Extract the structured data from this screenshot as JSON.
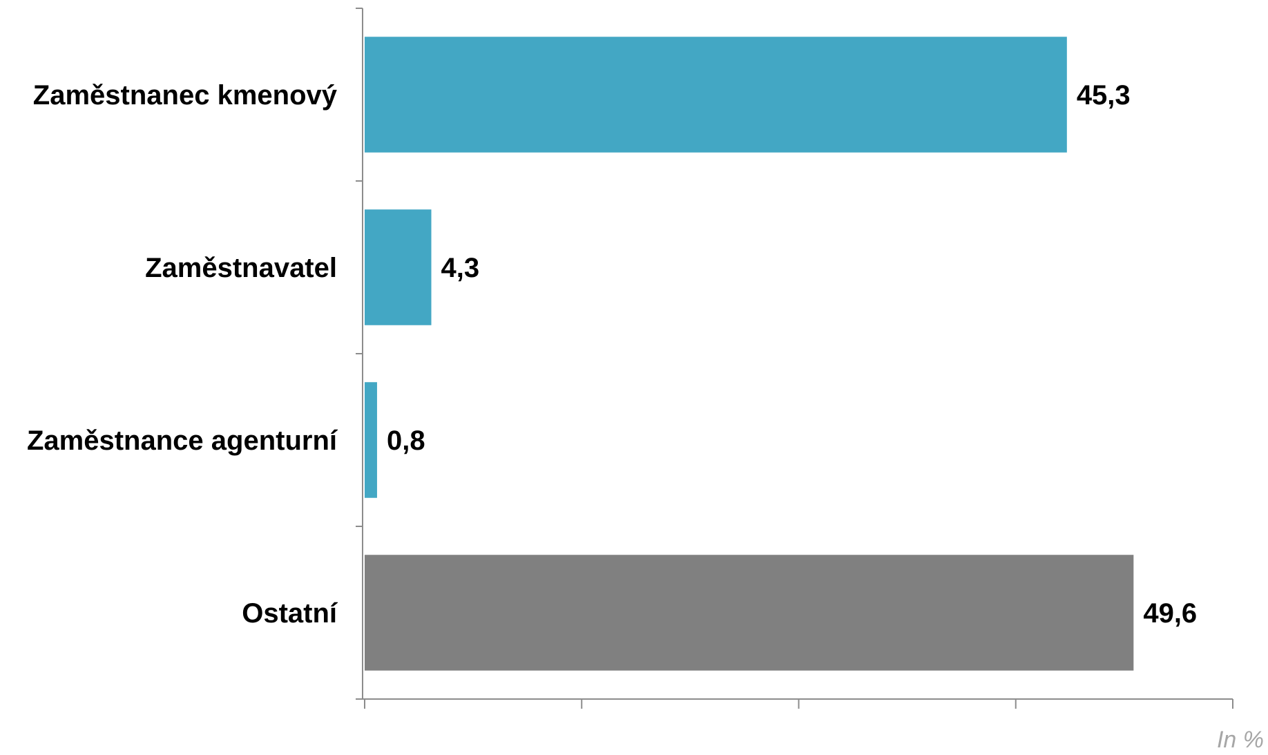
{
  "chart_data": {
    "type": "bar",
    "orientation": "horizontal",
    "categories": [
      "Zaměstnanec kmenový",
      "Zaměstnavatel",
      "Zaměstnance agenturní",
      "Ostatní"
    ],
    "values": [
      45.3,
      4.3,
      0.8,
      49.6
    ],
    "value_labels": [
      "45,3",
      "4,3",
      "0,8",
      "49,6"
    ],
    "colors": [
      "#43a7c4",
      "#43a7c4",
      "#43a7c4",
      "#808080"
    ],
    "title": "",
    "xlabel": "",
    "ylabel": "",
    "unit_label": "In %",
    "xlim": [
      0,
      56
    ],
    "x_ticks": [
      0,
      14,
      28,
      42,
      56
    ],
    "grid": false,
    "axis_color": "#8c8c8c"
  }
}
